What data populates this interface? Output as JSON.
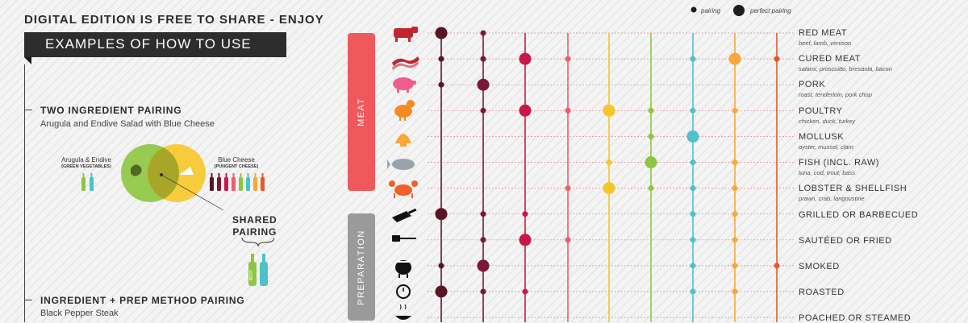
{
  "header": {
    "headline": "DIGITAL EDITION IS FREE TO SHARE - ENJOY",
    "banner": "EXAMPLES OF HOW TO USE"
  },
  "sections": {
    "two_ingredient": {
      "title": "TWO INGREDIENT PAIRING",
      "subtitle": "Arugula and Endive Salad with Blue Cheese"
    },
    "ingredient_prep": {
      "title": "INGREDIENT + PREP METHOD PAIRING",
      "subtitle": "Black Pepper Steak"
    }
  },
  "venn": {
    "left_label": "Arugula & Endive",
    "left_sub": "(GREEN VEGETABLES)",
    "right_label": "Blue Cheese",
    "right_sub": "(PUNGENT CHEESE)",
    "shared_line1": "SHARED",
    "shared_line2": "PAIRING",
    "best_label": "BEST",
    "left_color": "#8dc63f",
    "right_color": "#f7c51c"
  },
  "legend": {
    "pairing": "pairing",
    "perfect_pairing": "perfect pairing"
  },
  "categories": {
    "meat": "MEAT",
    "preparation": "PREPARATION"
  },
  "rows": [
    {
      "name": "RED MEAT",
      "desc": "beef, lamb, venison",
      "icon": "cow-icon"
    },
    {
      "name": "CURED MEAT",
      "desc": "salami, proscuitto, bresaola, bacon",
      "icon": "bacon-icon"
    },
    {
      "name": "PORK",
      "desc": "roast, tenderloin, pork chop",
      "icon": "pig-icon"
    },
    {
      "name": "POULTRY",
      "desc": "chicken, duck, turkey",
      "icon": "chicken-icon"
    },
    {
      "name": "MOLLUSK",
      "desc": "oyster, mussel, clam",
      "icon": "shell-icon"
    },
    {
      "name": "FISH (INCL. RAW)",
      "desc": "tuna, cod, trout, bass",
      "icon": "fish-icon"
    },
    {
      "name": "LOBSTER & SHELLFISH",
      "desc": "prawn, crab, langoustine",
      "icon": "crab-icon"
    },
    {
      "name": "GRILLED OR BARBECUED",
      "desc": "",
      "icon": "cleaver-icon"
    },
    {
      "name": "SAUTÉED OR FRIED",
      "desc": "",
      "icon": "spatula-icon"
    },
    {
      "name": "SMOKED",
      "desc": "",
      "icon": "smoker-icon"
    },
    {
      "name": "ROASTED",
      "desc": "",
      "icon": "thermometer-icon"
    },
    {
      "name": "POACHED OR STEAMED",
      "desc": "",
      "icon": "steam-bowl-icon"
    }
  ],
  "wine_columns": [
    {
      "color": "#5a1525"
    },
    {
      "color": "#7a1838"
    },
    {
      "color": "#c8184a"
    },
    {
      "color": "#ee5d6c"
    },
    {
      "color": "#f6c52b"
    },
    {
      "color": "#8dc63f"
    },
    {
      "color": "#4fc1c9"
    },
    {
      "color": "#f8a73a"
    },
    {
      "color": "#e35a2a"
    }
  ],
  "pairings": [
    [
      2,
      1,
      0,
      0,
      0,
      0,
      0,
      0,
      0
    ],
    [
      1,
      1,
      2,
      1,
      0,
      0,
      1,
      2,
      1
    ],
    [
      1,
      2,
      0,
      0,
      0,
      0,
      0,
      0,
      0
    ],
    [
      0,
      1,
      2,
      1,
      2,
      1,
      1,
      1,
      0
    ],
    [
      0,
      0,
      0,
      0,
      0,
      1,
      2,
      0,
      0
    ],
    [
      0,
      0,
      0,
      0,
      1,
      2,
      1,
      1,
      0
    ],
    [
      0,
      0,
      0,
      1,
      2,
      1,
      1,
      1,
      0
    ],
    [
      2,
      1,
      1,
      0,
      0,
      0,
      1,
      1,
      0
    ],
    [
      0,
      1,
      2,
      1,
      0,
      0,
      1,
      1,
      0
    ],
    [
      1,
      2,
      0,
      0,
      0,
      0,
      1,
      1,
      1
    ],
    [
      2,
      1,
      1,
      0,
      0,
      0,
      1,
      1,
      0
    ],
    [
      0,
      0,
      0,
      0,
      0,
      0,
      0,
      0,
      0
    ]
  ]
}
